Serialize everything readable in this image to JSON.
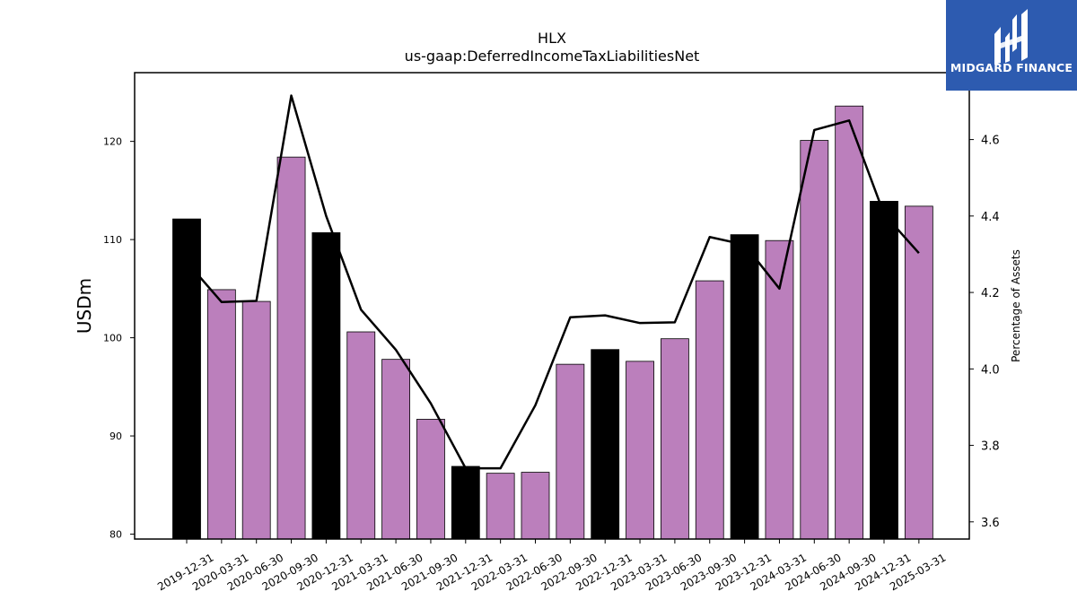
{
  "brand": {
    "name": "MIDGARD FINANCE",
    "logo_icon": "midgard-logo-icon",
    "background": "#2d5bb0"
  },
  "colors": {
    "annual_bar": "#000000",
    "quarter_bar": "#bb7fbc",
    "line": "#000000"
  },
  "chart_data": {
    "type": "bar",
    "title": "HLX",
    "subtitle": "us-gaap:DeferredIncomeTaxLiabilitiesNet",
    "ylabel": "USDm",
    "y2label": "Percentage of Assets",
    "ylim": [
      79.5,
      127
    ],
    "y2lim": [
      3.555,
      4.775
    ],
    "yticks": [
      80,
      90,
      100,
      110,
      120
    ],
    "y2ticks": [
      3.6,
      3.8,
      4.0,
      4.2,
      4.4,
      4.6
    ],
    "categories": [
      "2019-12-31",
      "2020-03-31",
      "2020-06-30",
      "2020-09-30",
      "2020-12-31",
      "2021-03-31",
      "2021-06-30",
      "2021-09-30",
      "2021-12-31",
      "2022-03-31",
      "2022-06-30",
      "2022-09-30",
      "2022-12-31",
      "2023-03-31",
      "2023-06-30",
      "2023-09-30",
      "2023-12-31",
      "2024-03-31",
      "2024-06-30",
      "2024-09-30",
      "2024-12-31",
      "2025-03-31"
    ],
    "series": [
      {
        "type": "bar",
        "axis": "left",
        "values": [
          112.1,
          104.9,
          103.7,
          118.4,
          110.7,
          100.6,
          97.8,
          91.7,
          86.9,
          86.2,
          86.3,
          97.3,
          98.8,
          97.6,
          99.9,
          105.8,
          110.5,
          109.9,
          120.1,
          123.6,
          113.9,
          113.4
        ],
        "annual": [
          true,
          false,
          false,
          false,
          true,
          false,
          false,
          false,
          true,
          false,
          false,
          false,
          true,
          false,
          false,
          false,
          true,
          false,
          false,
          false,
          true,
          false
        ]
      },
      {
        "type": "line",
        "axis": "right",
        "values": [
          4.28,
          4.175,
          4.178,
          4.715,
          4.4,
          4.155,
          4.05,
          3.91,
          3.74,
          3.74,
          3.905,
          4.135,
          4.14,
          4.12,
          4.122,
          4.345,
          4.325,
          4.21,
          4.625,
          4.65,
          4.405,
          4.303
        ]
      }
    ],
    "grid": false,
    "legend": "none"
  }
}
